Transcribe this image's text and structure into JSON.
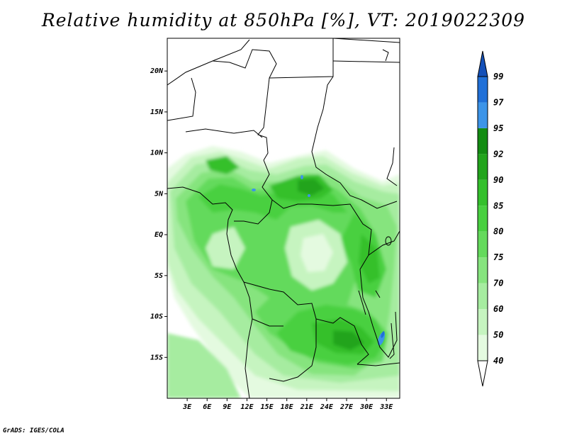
{
  "title": "Relative humidity at 850hPa [%], VT: 2019022309",
  "credit": "GrADS: IGES/COLA",
  "map": {
    "lon_range": [
      0,
      35
    ],
    "lat_range": [
      -20,
      24
    ],
    "lat_ticks": [
      {
        "value": 20,
        "label": "20N"
      },
      {
        "value": 15,
        "label": "15N"
      },
      {
        "value": 10,
        "label": "10N"
      },
      {
        "value": 5,
        "label": "5N"
      },
      {
        "value": 0,
        "label": "EQ"
      },
      {
        "value": -5,
        "label": "5S"
      },
      {
        "value": -10,
        "label": "10S"
      },
      {
        "value": -15,
        "label": "15S"
      }
    ],
    "lon_ticks": [
      {
        "value": 3,
        "label": "3E"
      },
      {
        "value": 6,
        "label": "6E"
      },
      {
        "value": 9,
        "label": "9E"
      },
      {
        "value": 12,
        "label": "12E"
      },
      {
        "value": 15,
        "label": "15E"
      },
      {
        "value": 18,
        "label": "18E"
      },
      {
        "value": 21,
        "label": "21E"
      },
      {
        "value": 24,
        "label": "24E"
      },
      {
        "value": 27,
        "label": "27E"
      },
      {
        "value": 30,
        "label": "30E"
      },
      {
        "value": 33,
        "label": "33E"
      }
    ]
  },
  "colorbar": {
    "levels": [
      "40",
      "50",
      "60",
      "70",
      "75",
      "80",
      "85",
      "90",
      "92",
      "95",
      "97",
      "99"
    ],
    "colors": [
      "#e4fae0",
      "#c6f4c0",
      "#a6eca0",
      "#86e47e",
      "#64da5c",
      "#48d040",
      "#34c02c",
      "#22a41c",
      "#138c12",
      "#3c94e8",
      "#2070d8",
      "#1450b8"
    ],
    "under_color": "#ffffff",
    "over_color": "#1450b8"
  }
}
